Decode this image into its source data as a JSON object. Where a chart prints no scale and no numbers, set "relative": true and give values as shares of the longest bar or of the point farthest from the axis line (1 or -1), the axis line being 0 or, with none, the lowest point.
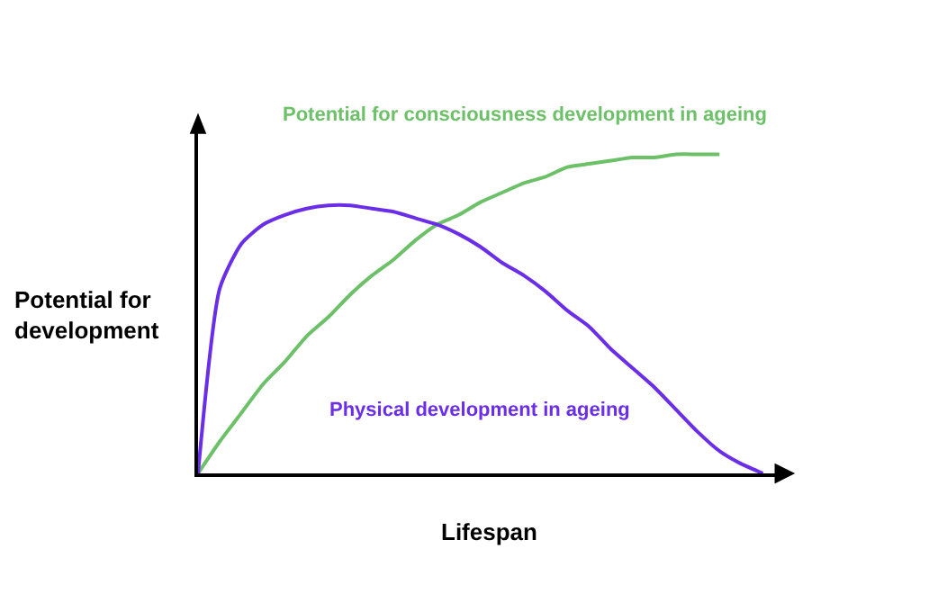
{
  "chart_data": {
    "type": "line",
    "relative": true,
    "xlabel": "Lifespan",
    "ylabel": "Potential for development",
    "categories": [
      null,
      null,
      null,
      null,
      null,
      null,
      null,
      null,
      null,
      null,
      null,
      null,
      null,
      null,
      null,
      null,
      null,
      null,
      null,
      null,
      null,
      null,
      null,
      null,
      null,
      null,
      null
    ],
    "series": [
      {
        "name": "Potential for consciousness development in ageing",
        "color": "#6cc068",
        "values": [
          0,
          0.1,
          0.19,
          0.28,
          0.35,
          0.43,
          0.49,
          0.56,
          0.62,
          0.67,
          0.73,
          0.78,
          0.81,
          0.85,
          0.88,
          0.91,
          0.93,
          0.96,
          0.97,
          0.98,
          0.99,
          0.99,
          1,
          1,
          1,
          null,
          null
        ]
      },
      {
        "name": "Physical development in ageing",
        "color": "#6a2ee8",
        "values": [
          0,
          0.58,
          0.72,
          0.78,
          0.81,
          0.83,
          0.84,
          0.84,
          0.83,
          0.82,
          0.8,
          0.78,
          0.75,
          0.71,
          0.66,
          0.62,
          0.57,
          0.51,
          0.46,
          0.39,
          0.33,
          0.27,
          0.2,
          0.13,
          0.07,
          0.03,
          0
        ]
      }
    ],
    "legend": false,
    "marker": "none",
    "line_style": "solid"
  }
}
